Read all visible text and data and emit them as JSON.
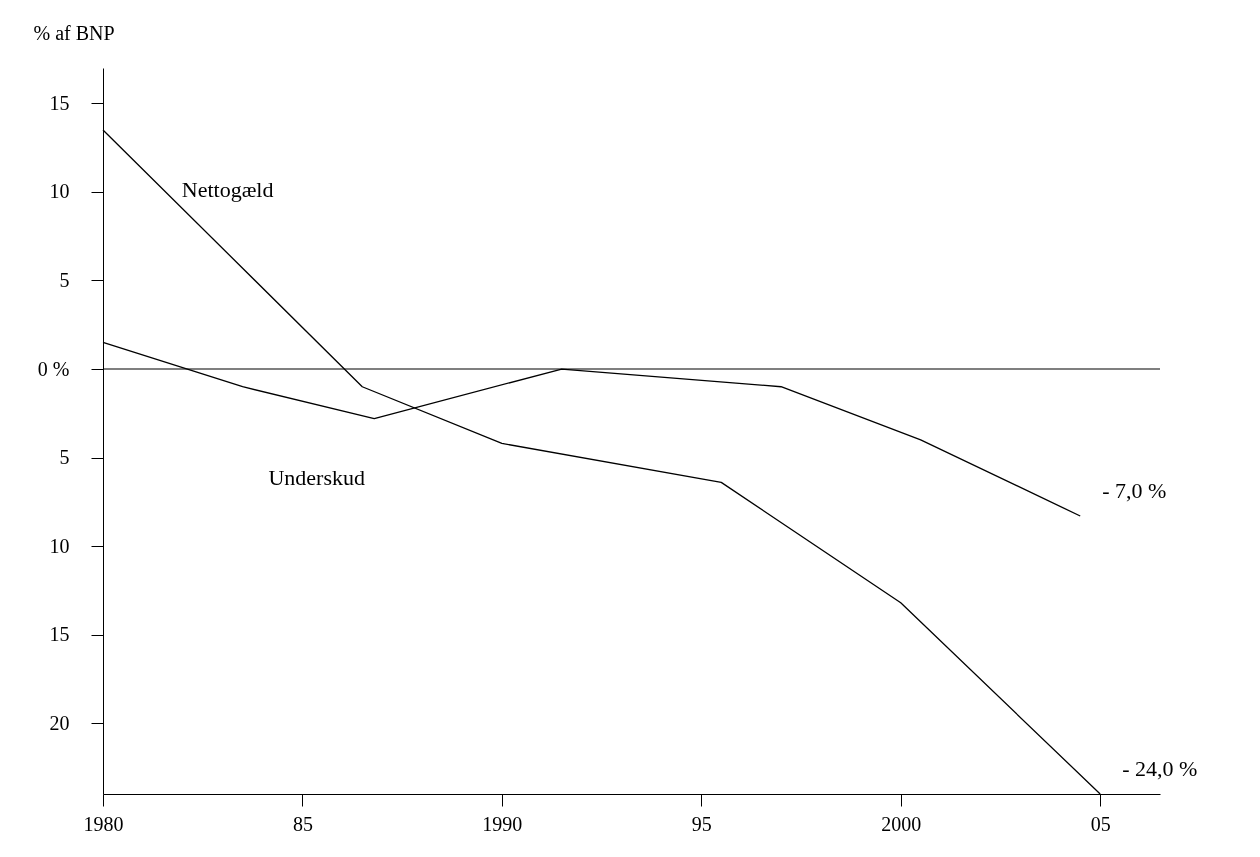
{
  "chart_data": {
    "type": "line",
    "ylabel": "% af BNP",
    "xlim": [
      1980,
      2006.5
    ],
    "ylim": [
      -24,
      17
    ],
    "xticks": [
      {
        "value": 1980,
        "label": "1980"
      },
      {
        "value": 1985,
        "label": "85"
      },
      {
        "value": 1990,
        "label": "1990"
      },
      {
        "value": 1995,
        "label": "95"
      },
      {
        "value": 2000,
        "label": "2000"
      },
      {
        "value": 2005,
        "label": "05"
      }
    ],
    "yticks": [
      {
        "value": 15,
        "label": "15"
      },
      {
        "value": 10,
        "label": "10"
      },
      {
        "value": 5,
        "label": "5"
      },
      {
        "value": 0,
        "label": "0 %"
      },
      {
        "value": -5,
        "label": "5"
      },
      {
        "value": -10,
        "label": "10"
      },
      {
        "value": -15,
        "label": "15"
      },
      {
        "value": -20,
        "label": "20"
      }
    ],
    "series": [
      {
        "name": "Nettogæld",
        "color": "#000000",
        "x": [
          1980,
          1986.5,
          1990,
          1995.5,
          2000,
          2005
        ],
        "values": [
          13.5,
          -1,
          -4.2,
          -6.4,
          -13.2,
          -24
        ]
      },
      {
        "name": "Underskud",
        "color": "#000000",
        "x": [
          1980,
          1983.5,
          1986.8,
          1991.5,
          1997,
          2000.5,
          2004.5
        ],
        "values": [
          1.5,
          -1,
          -2.8,
          0,
          -1,
          -4,
          -8.3
        ]
      }
    ],
    "ref_lines": [
      {
        "axis": "y",
        "value": 0
      }
    ],
    "annotations": [
      "- 7,0 %",
      "- 24,0 %"
    ],
    "grid": false,
    "legend": false,
    "marker": "none",
    "line_style": "solid"
  }
}
